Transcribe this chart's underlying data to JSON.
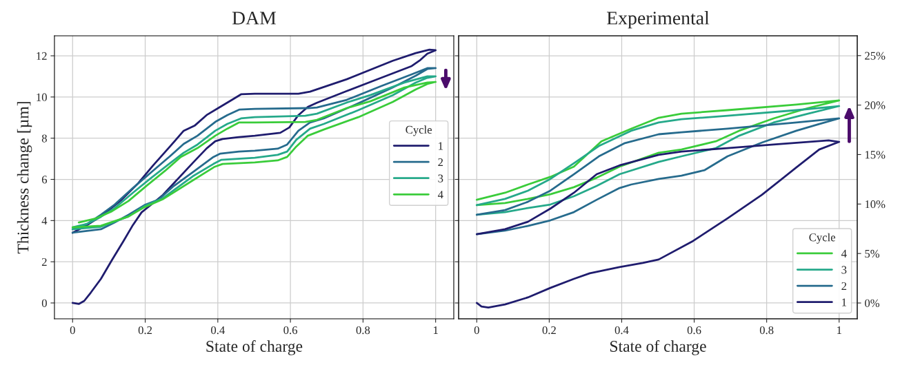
{
  "chart_data": [
    {
      "type": "line",
      "title": "DAM",
      "xlabel": "State of charge",
      "ylabel": "Thickness change [µm]",
      "legend_title": "Cycle",
      "legend": "center right",
      "grid": true,
      "xlim": [
        -0.05,
        1.05
      ],
      "xticks": [
        0,
        0.2,
        0.4,
        0.6,
        0.8,
        1
      ],
      "ylim": [
        -0.77,
        12.97
      ],
      "yticks": [
        0,
        2,
        4,
        6,
        8,
        10,
        12
      ],
      "series": [
        {
          "name": "1",
          "color": "#1f1c6e",
          "x": [
            0,
            0.017,
            0.032,
            0.05,
            0.078,
            0.108,
            0.14,
            0.166,
            0.19,
            0.217,
            0.249,
            0.293,
            0.331,
            0.369,
            0.393,
            0.413,
            0.458,
            0.502,
            0.572,
            0.597,
            0.622,
            0.648,
            0.673,
            0.755,
            0.85,
            0.934,
            0.958,
            0.977,
            1.0,
            0.983,
            0.945,
            0.882,
            0.755,
            0.654,
            0.622,
            0.502,
            0.464,
            0.439,
            0.401,
            0.369,
            0.337,
            0.306,
            0.268,
            0.222,
            0.179,
            0.135,
            0.084,
            0.04,
            0
          ],
          "values": [
            0,
            -0.05,
            0.1,
            0.5,
            1.17,
            2.07,
            3.0,
            3.78,
            4.4,
            4.78,
            5.25,
            6.08,
            6.8,
            7.5,
            7.85,
            7.96,
            8.05,
            8.12,
            8.26,
            8.52,
            9.12,
            9.52,
            9.72,
            10.29,
            10.93,
            11.5,
            11.8,
            12.1,
            12.27,
            12.3,
            12.13,
            11.76,
            10.86,
            10.26,
            10.16,
            10.16,
            10.13,
            9.86,
            9.46,
            9.12,
            8.62,
            8.36,
            7.59,
            6.68,
            5.78,
            5.01,
            4.28,
            3.78,
            3.41
          ]
        },
        {
          "name": "2",
          "color": "#266b8d",
          "x": [
            0,
            0.078,
            0.116,
            0.154,
            0.198,
            0.236,
            0.279,
            0.331,
            0.388,
            0.407,
            0.458,
            0.502,
            0.565,
            0.591,
            0.622,
            0.654,
            0.692,
            0.787,
            0.882,
            0.945,
            0.977,
            1.0,
            0.977,
            0.934,
            0.85,
            0.755,
            0.673,
            0.648,
            0.502,
            0.46,
            0.426,
            0.393,
            0.344,
            0.306,
            0.268,
            0.217,
            0.166,
            0.116,
            0.078,
            0.04,
            0
          ],
          "values": [
            3.41,
            3.58,
            3.91,
            4.28,
            4.75,
            5.01,
            5.68,
            6.35,
            7.09,
            7.25,
            7.35,
            7.39,
            7.49,
            7.69,
            8.36,
            8.76,
            8.96,
            9.69,
            10.46,
            11.03,
            11.36,
            11.4,
            11.4,
            11.1,
            10.53,
            9.86,
            9.49,
            9.46,
            9.42,
            9.39,
            9.12,
            8.79,
            8.12,
            7.72,
            7.12,
            6.35,
            5.58,
            4.78,
            4.28,
            3.84,
            3.58
          ]
        },
        {
          "name": "3",
          "color": "#25a98a",
          "x": [
            0,
            0.078,
            0.154,
            0.198,
            0.25,
            0.331,
            0.388,
            0.41,
            0.502,
            0.565,
            0.591,
            0.616,
            0.654,
            0.692,
            0.787,
            0.882,
            0.945,
            0.977,
            1.0,
            0.977,
            0.914,
            0.82,
            0.755,
            0.673,
            0.641,
            0.502,
            0.464,
            0.426,
            0.393,
            0.344,
            0.306,
            0.268,
            0.217,
            0.166,
            0.116,
            0.078,
            0.04,
            0
          ],
          "values": [
            3.58,
            3.7,
            4.2,
            4.7,
            5.1,
            6.15,
            6.75,
            6.95,
            7.05,
            7.19,
            7.35,
            7.92,
            8.46,
            8.69,
            9.36,
            10.09,
            10.7,
            10.93,
            11.0,
            11.0,
            10.7,
            10.09,
            9.73,
            9.19,
            9.09,
            9.02,
            8.96,
            8.69,
            8.36,
            7.69,
            7.29,
            6.78,
            6.08,
            5.35,
            4.61,
            4.18,
            3.84,
            3.67
          ]
        },
        {
          "name": "4",
          "color": "#3acc3a",
          "x": [
            0,
            0.078,
            0.154,
            0.198,
            0.25,
            0.331,
            0.39,
            0.413,
            0.502,
            0.565,
            0.591,
            0.616,
            0.648,
            0.692,
            0.787,
            0.882,
            0.945,
            0.977,
            1.0,
            0.977,
            0.914,
            0.82,
            0.755,
            0.673,
            0.641,
            0.502,
            0.458,
            0.426,
            0.393,
            0.344,
            0.298,
            0.255,
            0.203,
            0.154,
            0.108,
            0.065,
            0.017
          ],
          "values": [
            3.67,
            3.75,
            4.2,
            4.65,
            5.05,
            5.95,
            6.6,
            6.75,
            6.82,
            6.92,
            7.09,
            7.59,
            8.12,
            8.42,
            9.02,
            9.76,
            10.36,
            10.63,
            10.73,
            10.7,
            10.46,
            9.79,
            9.46,
            8.89,
            8.79,
            8.76,
            8.76,
            8.46,
            8.12,
            7.52,
            7.09,
            6.42,
            5.68,
            4.95,
            4.45,
            4.11,
            3.91
          ]
        }
      ]
    },
    {
      "type": "line",
      "title": "Experimental",
      "xlabel": "State of charge",
      "legend_title": "Cycle",
      "legend": "bottom right",
      "grid": true,
      "tick_labels": "x",
      "xlim": [
        -0.05,
        1.05
      ],
      "xticks": [
        0,
        0.2,
        0.4,
        0.6,
        0.8,
        1
      ],
      "ylim": [
        -0.77,
        12.97
      ],
      "yticks": [
        0,
        2,
        4,
        6,
        8,
        10,
        12
      ],
      "y2lim": [
        -1.6,
        27.0
      ],
      "y2ticks": [
        {
          "value": 0,
          "label": "0%"
        },
        {
          "value": 5,
          "label": "5%"
        },
        {
          "value": 10,
          "label": "10%"
        },
        {
          "value": 15,
          "label": "15%"
        },
        {
          "value": 20,
          "label": "20%"
        },
        {
          "value": 25,
          "label": "25%"
        }
      ],
      "series": [
        {
          "name": "4",
          "color": "#3acc3a",
          "x": [
            0,
            0.078,
            0.141,
            0.203,
            0.268,
            0.331,
            0.394,
            0.502,
            0.565,
            0.66,
            0.724,
            0.819,
            0.914,
            1.0,
            0.882,
            0.692,
            0.565,
            0.502,
            0.426,
            0.344,
            0.268,
            0.203,
            0.141,
            0.078,
            0
          ],
          "values": [
            4.75,
            4.85,
            5.05,
            5.28,
            5.62,
            6.08,
            6.62,
            7.29,
            7.45,
            7.85,
            8.36,
            8.96,
            9.46,
            9.83,
            9.63,
            9.36,
            9.19,
            8.99,
            8.46,
            7.85,
            6.62,
            6.12,
            5.75,
            5.35,
            5.01
          ]
        },
        {
          "name": "3",
          "color": "#25a98a",
          "x": [
            0,
            0.078,
            0.141,
            0.203,
            0.268,
            0.331,
            0.394,
            0.502,
            0.565,
            0.66,
            0.724,
            0.819,
            0.914,
            1.0,
            0.882,
            0.692,
            0.565,
            0.502,
            0.426,
            0.337,
            0.268,
            0.203,
            0.141,
            0.078,
            0
          ],
          "values": [
            4.28,
            4.41,
            4.61,
            4.78,
            5.18,
            5.68,
            6.25,
            6.85,
            7.12,
            7.52,
            8.12,
            8.76,
            9.19,
            9.56,
            9.36,
            9.09,
            8.92,
            8.76,
            8.36,
            7.62,
            6.78,
            6.02,
            5.45,
            5.05,
            4.75
          ]
        },
        {
          "name": "2",
          "color": "#266b8d",
          "x": [
            0,
            0.078,
            0.141,
            0.203,
            0.268,
            0.331,
            0.394,
            0.426,
            0.502,
            0.565,
            0.629,
            0.692,
            0.787,
            0.882,
            0.945,
            1.0,
            0.882,
            0.692,
            0.565,
            0.502,
            0.407,
            0.337,
            0.268,
            0.203,
            0.141,
            0.078,
            0
          ],
          "values": [
            3.34,
            3.51,
            3.74,
            4.01,
            4.41,
            5.01,
            5.58,
            5.75,
            6.02,
            6.18,
            6.45,
            7.12,
            7.79,
            8.36,
            8.69,
            8.96,
            8.76,
            8.46,
            8.29,
            8.19,
            7.75,
            7.12,
            6.25,
            5.45,
            4.91,
            4.51,
            4.28
          ]
        },
        {
          "name": "1",
          "color": "#1f1c6e",
          "x": [
            0,
            0.013,
            0.032,
            0.078,
            0.141,
            0.203,
            0.268,
            0.312,
            0.394,
            0.458,
            0.502,
            0.597,
            0.692,
            0.787,
            0.882,
            0.945,
            1.0,
            0.971,
            0.819,
            0.692,
            0.565,
            0.502,
            0.394,
            0.331,
            0.268,
            0.203,
            0.141,
            0.078,
            0
          ],
          "values": [
            0,
            -0.17,
            -0.22,
            -0.07,
            0.27,
            0.73,
            1.17,
            1.44,
            1.74,
            1.94,
            2.11,
            3.01,
            4.11,
            5.25,
            6.58,
            7.45,
            7.82,
            7.89,
            7.69,
            7.52,
            7.35,
            7.19,
            6.68,
            6.25,
            5.35,
            4.58,
            3.94,
            3.58,
            3.34
          ]
        }
      ]
    }
  ]
}
